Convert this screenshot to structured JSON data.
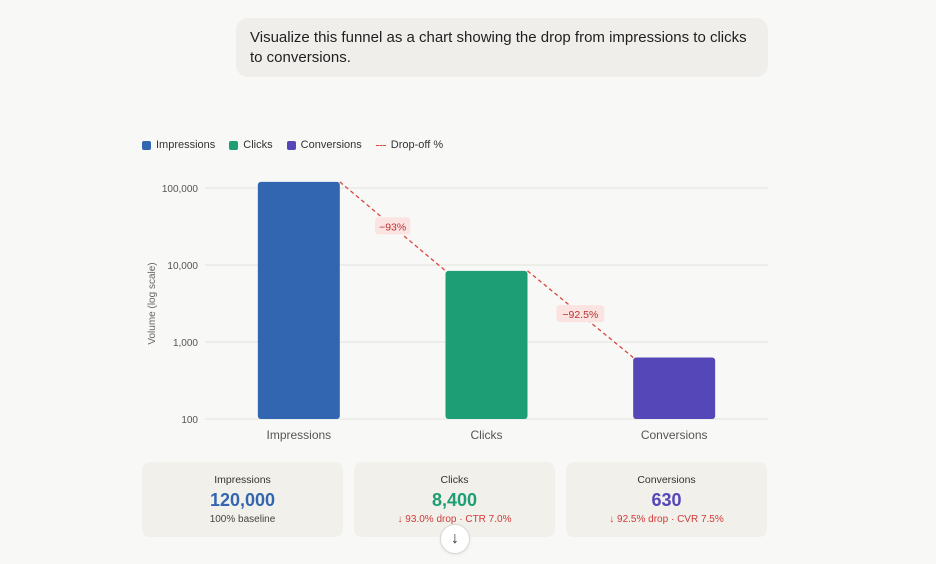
{
  "prompt": {
    "text": "Visualize this funnel as a chart showing the drop from impressions to clicks to conversions."
  },
  "legend": {
    "items": [
      {
        "label": "Impressions",
        "color": "#3366b0"
      },
      {
        "label": "Clicks",
        "color": "#1e9e74"
      },
      {
        "label": "Conversions",
        "color": "#5647b8"
      }
    ],
    "dropoff_label": "Drop-off %",
    "dropoff_color": "#d9473e"
  },
  "chart_data": {
    "type": "bar",
    "scale": "log",
    "ylabel": "Volume (log scale)",
    "ylim": [
      100,
      100000
    ],
    "yticks": [
      "100",
      "1,000",
      "10,000",
      "100,000"
    ],
    "grid": true,
    "categories": [
      "Impressions",
      "Clicks",
      "Conversions"
    ],
    "values": [
      120000,
      8400,
      630
    ],
    "colors": [
      "#3366b0",
      "#1e9e74",
      "#5647b8"
    ],
    "dropoffs": [
      "−93%",
      "−92.5%"
    ]
  },
  "cards": [
    {
      "label": "Impressions",
      "value": "120,000",
      "sub": "100% baseline",
      "color": "#3366b0"
    },
    {
      "label": "Clicks",
      "value": "8,400",
      "sub": "↓ 93.0% drop · CTR 7.0%",
      "color": "#1e9e74"
    },
    {
      "label": "Conversions",
      "value": "630",
      "sub": "↓ 92.5% drop · CVR 7.5%",
      "color": "#5647b8"
    }
  ],
  "scroll_button": {
    "icon": "arrow-down-icon",
    "glyph": "↓"
  }
}
